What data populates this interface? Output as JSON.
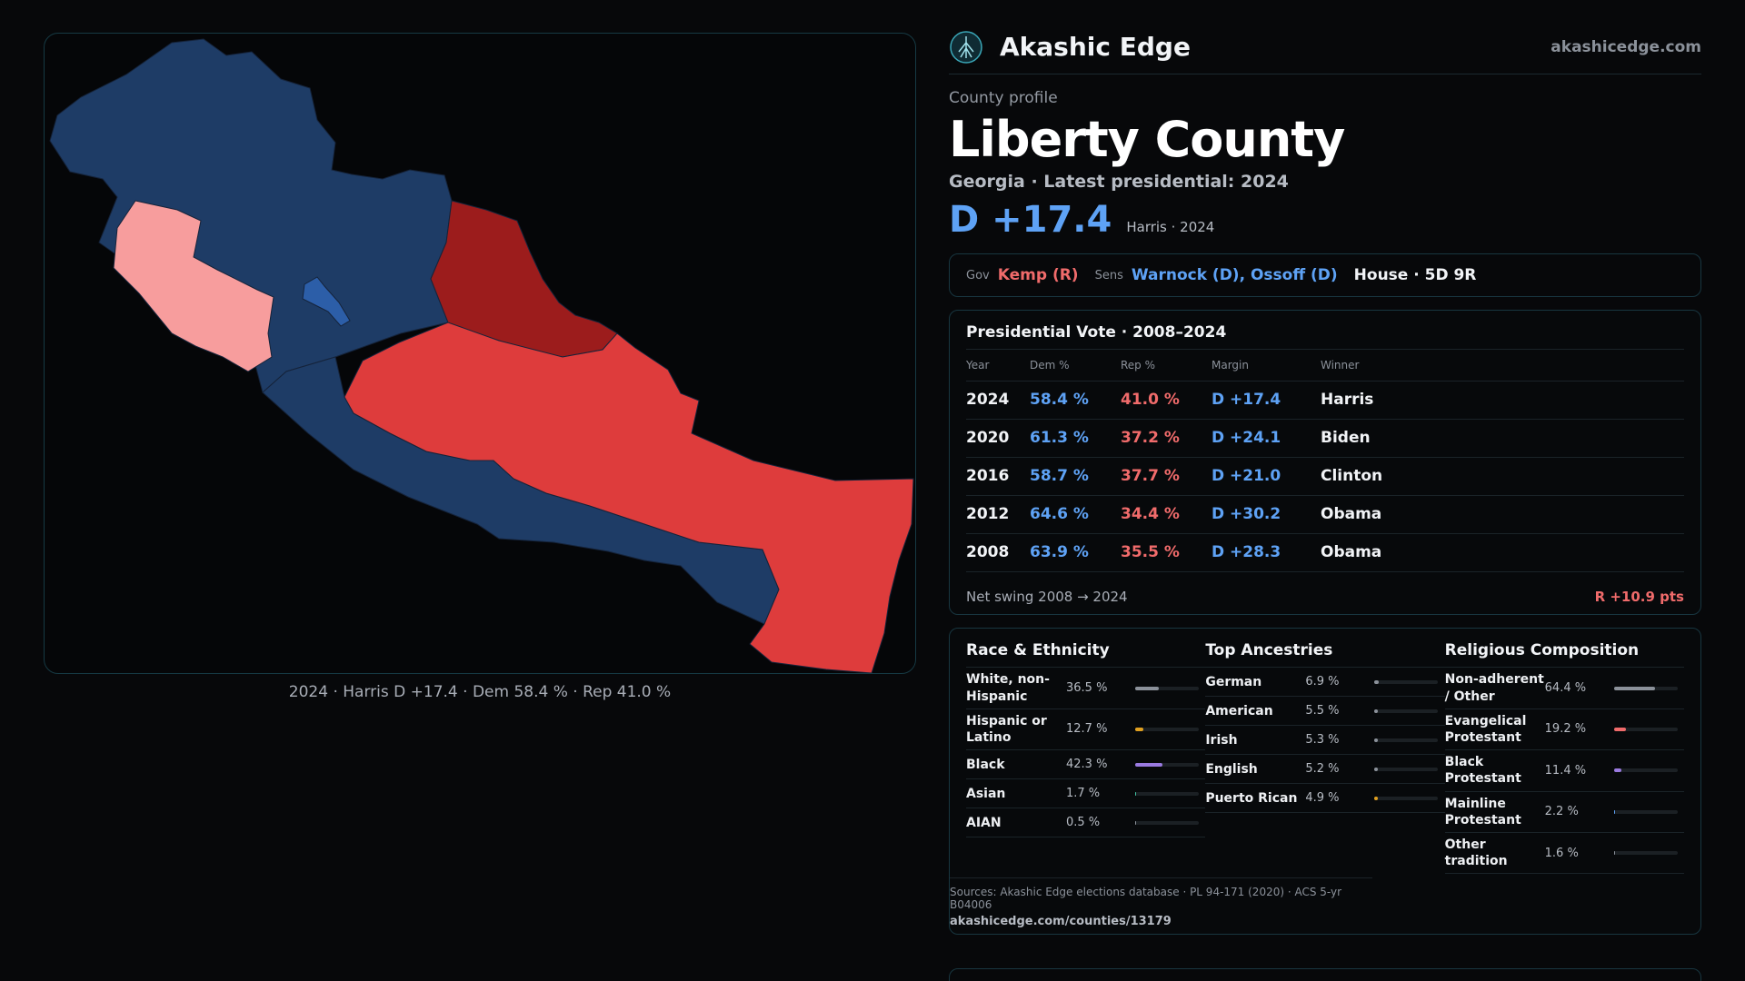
{
  "map": {
    "caption": "2024 · Harris D +17.4 · Dem 58.4 % · Rep 41.0 %",
    "colors": {
      "dem_strong": "#1e3c66",
      "dem_light": "#2c5ea8",
      "rep_light": "#f79d9d",
      "rep_mid": "#de3c3c",
      "rep_strong": "#9c1c1c"
    }
  },
  "brand": {
    "name": "Akashic Edge",
    "site": "akashicedge.com",
    "logo_icon": "network-tree-icon"
  },
  "county": {
    "eyebrow": "County profile",
    "title": "Liberty County",
    "subtitle": "Georgia · Latest presidential: 2024",
    "margin": "D +17.4",
    "margin_note": "Harris · 2024"
  },
  "officials": {
    "gov_label": "Gov",
    "gov": "Kemp (R)",
    "sens_label": "Sens",
    "sens": "Warnock (D), Ossoff (D)",
    "house": "House · 5D 9R"
  },
  "presidential": {
    "title": "Presidential Vote · 2008–2024",
    "headers": [
      "Year",
      "Dem %",
      "Rep %",
      "Margin",
      "Winner"
    ],
    "rows": [
      {
        "year": "2024",
        "dem": "58.4 %",
        "rep": "41.0 %",
        "margin": "D +17.4",
        "winner": "Harris"
      },
      {
        "year": "2020",
        "dem": "61.3 %",
        "rep": "37.2 %",
        "margin": "D +24.1",
        "winner": "Biden"
      },
      {
        "year": "2016",
        "dem": "58.7 %",
        "rep": "37.7 %",
        "margin": "D +21.0",
        "winner": "Clinton"
      },
      {
        "year": "2012",
        "dem": "64.6 %",
        "rep": "34.4 %",
        "margin": "D +30.2",
        "winner": "Obama"
      },
      {
        "year": "2008",
        "dem": "63.9 %",
        "rep": "35.5 %",
        "margin": "D +28.3",
        "winner": "Obama"
      }
    ],
    "swing_label": "Net swing 2008 → 2024",
    "swing_value": "R +10.9 pts"
  },
  "demographics": {
    "race": {
      "title": "Race & Ethnicity",
      "items": [
        {
          "label": "White, non-Hispanic",
          "value": "36.5 %",
          "pct": 36.5,
          "color": "#8b919a"
        },
        {
          "label": "Hispanic or Latino",
          "value": "12.7 %",
          "pct": 12.7,
          "color": "#e0a020"
        },
        {
          "label": "Black",
          "value": "42.3 %",
          "pct": 42.3,
          "color": "#9a7ae0"
        },
        {
          "label": "Asian",
          "value": "1.7 %",
          "pct": 1.7,
          "color": "#3fc0a0"
        },
        {
          "label": "AIAN",
          "value": "0.5 %",
          "pct": 0.5,
          "color": "#8b919a"
        }
      ]
    },
    "ancestry": {
      "title": "Top Ancestries",
      "items": [
        {
          "label": "German",
          "value": "6.9 %",
          "pct": 6.9,
          "color": "#8b919a"
        },
        {
          "label": "American",
          "value": "5.5 %",
          "pct": 5.5,
          "color": "#8b919a"
        },
        {
          "label": "Irish",
          "value": "5.3 %",
          "pct": 5.3,
          "color": "#8b919a"
        },
        {
          "label": "English",
          "value": "5.2 %",
          "pct": 5.2,
          "color": "#8b919a"
        },
        {
          "label": "Puerto Rican",
          "value": "4.9 %",
          "pct": 4.9,
          "color": "#e0a020"
        }
      ]
    },
    "religion": {
      "title": "Religious Composition",
      "items": [
        {
          "label": "Non-adherent / Other",
          "value": "64.4 %",
          "pct": 64.4,
          "color": "#8b919a"
        },
        {
          "label": "Evangelical Protestant",
          "value": "19.2 %",
          "pct": 19.2,
          "color": "#f06b6b"
        },
        {
          "label": "Black Protestant",
          "value": "11.4 %",
          "pct": 11.4,
          "color": "#9a7ae0"
        },
        {
          "label": "Mainline Protestant",
          "value": "2.2 %",
          "pct": 2.2,
          "color": "#5ea2f5"
        },
        {
          "label": "Other tradition",
          "value": "1.6 %",
          "pct": 1.6,
          "color": "#8b919a"
        }
      ]
    },
    "sources": "Sources: Akashic Edge elections database · PL 94-171 (2020) · ACS 5-yr B04006",
    "url": "akashicedge.com/counties/13179"
  }
}
